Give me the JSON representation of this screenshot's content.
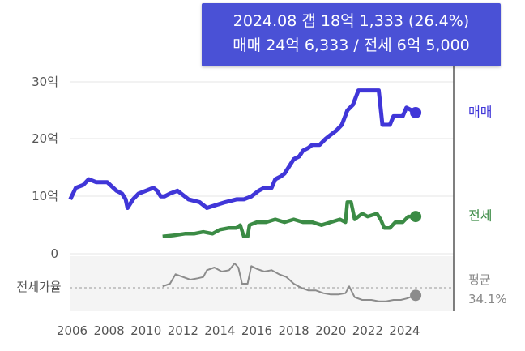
{
  "tooltip": {
    "line1": "2024.08  갭 18억 1,333 (26.4%)",
    "line2": "매매 24억 6,333 / 전세 6억 5,000"
  },
  "chart_data": {
    "type": "line",
    "x_ticks": [
      "2006",
      "2008",
      "2010",
      "2012",
      "2014",
      "2016",
      "2018",
      "2020",
      "2022",
      "2024"
    ],
    "y_ticks": [
      "30억",
      "20억",
      "10억",
      "0"
    ],
    "ylim_eok": [
      0,
      30
    ],
    "ratio_label": "전세가율",
    "ratio_avg_label": "평균",
    "ratio_avg_value": "34.1%",
    "colors": {
      "sale": "#4036d8",
      "jeonse": "#3b8b45",
      "ratio": "#8c8c8c",
      "tooltip": "#4a51d6"
    },
    "series": [
      {
        "name": "매매",
        "points": [
          [
            2005.9,
            9.5
          ],
          [
            2006.2,
            11.5
          ],
          [
            2006.6,
            12
          ],
          [
            2006.9,
            13
          ],
          [
            2007.3,
            12.5
          ],
          [
            2007.9,
            12.5
          ],
          [
            2008.4,
            11
          ],
          [
            2008.7,
            10.5
          ],
          [
            2008.9,
            9.5
          ],
          [
            2009.0,
            8
          ],
          [
            2009.3,
            9.5
          ],
          [
            2009.6,
            10.5
          ],
          [
            2010.0,
            11
          ],
          [
            2010.4,
            11.5
          ],
          [
            2010.6,
            11
          ],
          [
            2010.8,
            10
          ],
          [
            2011.0,
            10
          ],
          [
            2011.3,
            10.5
          ],
          [
            2011.7,
            11
          ],
          [
            2012.1,
            10
          ],
          [
            2012.3,
            9.5
          ],
          [
            2012.9,
            9
          ],
          [
            2013.3,
            8
          ],
          [
            2013.8,
            8.5
          ],
          [
            2014.3,
            9
          ],
          [
            2014.9,
            9.5
          ],
          [
            2015.3,
            9.5
          ],
          [
            2015.7,
            10
          ],
          [
            2016.1,
            11
          ],
          [
            2016.4,
            11.5
          ],
          [
            2016.8,
            11.5
          ],
          [
            2017.0,
            13
          ],
          [
            2017.3,
            13.5
          ],
          [
            2017.5,
            14
          ],
          [
            2017.7,
            15
          ],
          [
            2018.0,
            16.5
          ],
          [
            2018.3,
            17
          ],
          [
            2018.5,
            18
          ],
          [
            2018.8,
            18.5
          ],
          [
            2019.0,
            19
          ],
          [
            2019.4,
            19
          ],
          [
            2019.7,
            20
          ],
          [
            2019.9,
            20.5
          ],
          [
            2020.3,
            21.5
          ],
          [
            2020.6,
            22.5
          ],
          [
            2020.9,
            25
          ],
          [
            2021.2,
            26
          ],
          [
            2021.5,
            28.5
          ],
          [
            2022.3,
            28.5
          ],
          [
            2022.6,
            28.5
          ],
          [
            2022.8,
            22.5
          ],
          [
            2023.2,
            22.5
          ],
          [
            2023.4,
            24
          ],
          [
            2023.9,
            24
          ],
          [
            2024.1,
            25.5
          ],
          [
            2024.4,
            25
          ],
          [
            2024.6,
            24.63
          ]
        ]
      },
      {
        "name": "전세",
        "points": [
          [
            2010.9,
            3
          ],
          [
            2011.5,
            3.2
          ],
          [
            2012.1,
            3.5
          ],
          [
            2012.6,
            3.5
          ],
          [
            2013.1,
            3.8
          ],
          [
            2013.6,
            3.5
          ],
          [
            2014.0,
            4.2
          ],
          [
            2014.5,
            4.5
          ],
          [
            2014.9,
            4.5
          ],
          [
            2015.1,
            5
          ],
          [
            2015.3,
            3
          ],
          [
            2015.5,
            3
          ],
          [
            2015.6,
            5
          ],
          [
            2016.0,
            5.5
          ],
          [
            2016.5,
            5.5
          ],
          [
            2017.0,
            6
          ],
          [
            2017.5,
            5.5
          ],
          [
            2018.0,
            6
          ],
          [
            2018.5,
            5.5
          ],
          [
            2019.0,
            5.5
          ],
          [
            2019.5,
            5
          ],
          [
            2020.0,
            5.5
          ],
          [
            2020.5,
            6
          ],
          [
            2020.8,
            5.5
          ],
          [
            2020.9,
            9
          ],
          [
            2021.1,
            9
          ],
          [
            2021.3,
            6
          ],
          [
            2021.7,
            7
          ],
          [
            2022.0,
            6.5
          ],
          [
            2022.5,
            7
          ],
          [
            2022.7,
            6
          ],
          [
            2022.9,
            4.5
          ],
          [
            2023.2,
            4.5
          ],
          [
            2023.5,
            5.5
          ],
          [
            2023.9,
            5.5
          ],
          [
            2024.2,
            6.5
          ],
          [
            2024.6,
            6.5
          ]
        ]
      },
      {
        "name": "전세가율",
        "unit": "%",
        "points": [
          [
            2010.9,
            33
          ],
          [
            2011.3,
            35
          ],
          [
            2011.6,
            42
          ],
          [
            2012.0,
            40
          ],
          [
            2012.4,
            38
          ],
          [
            2012.8,
            39
          ],
          [
            2013.1,
            40
          ],
          [
            2013.3,
            45
          ],
          [
            2013.7,
            47
          ],
          [
            2014.1,
            44
          ],
          [
            2014.5,
            45
          ],
          [
            2014.8,
            50
          ],
          [
            2015.0,
            47
          ],
          [
            2015.2,
            35
          ],
          [
            2015.5,
            35
          ],
          [
            2015.7,
            48
          ],
          [
            2016.0,
            46
          ],
          [
            2016.4,
            44
          ],
          [
            2016.8,
            45
          ],
          [
            2017.2,
            42
          ],
          [
            2017.6,
            40
          ],
          [
            2018.0,
            35
          ],
          [
            2018.4,
            32
          ],
          [
            2018.8,
            30
          ],
          [
            2019.2,
            30
          ],
          [
            2019.6,
            28
          ],
          [
            2020.0,
            27
          ],
          [
            2020.4,
            27
          ],
          [
            2020.8,
            28
          ],
          [
            2021.0,
            33
          ],
          [
            2021.3,
            25
          ],
          [
            2021.7,
            23
          ],
          [
            2022.2,
            23
          ],
          [
            2022.6,
            22
          ],
          [
            2023.0,
            22
          ],
          [
            2023.4,
            23
          ],
          [
            2023.8,
            23
          ],
          [
            2024.1,
            24
          ],
          [
            2024.6,
            26.4
          ]
        ]
      }
    ]
  }
}
